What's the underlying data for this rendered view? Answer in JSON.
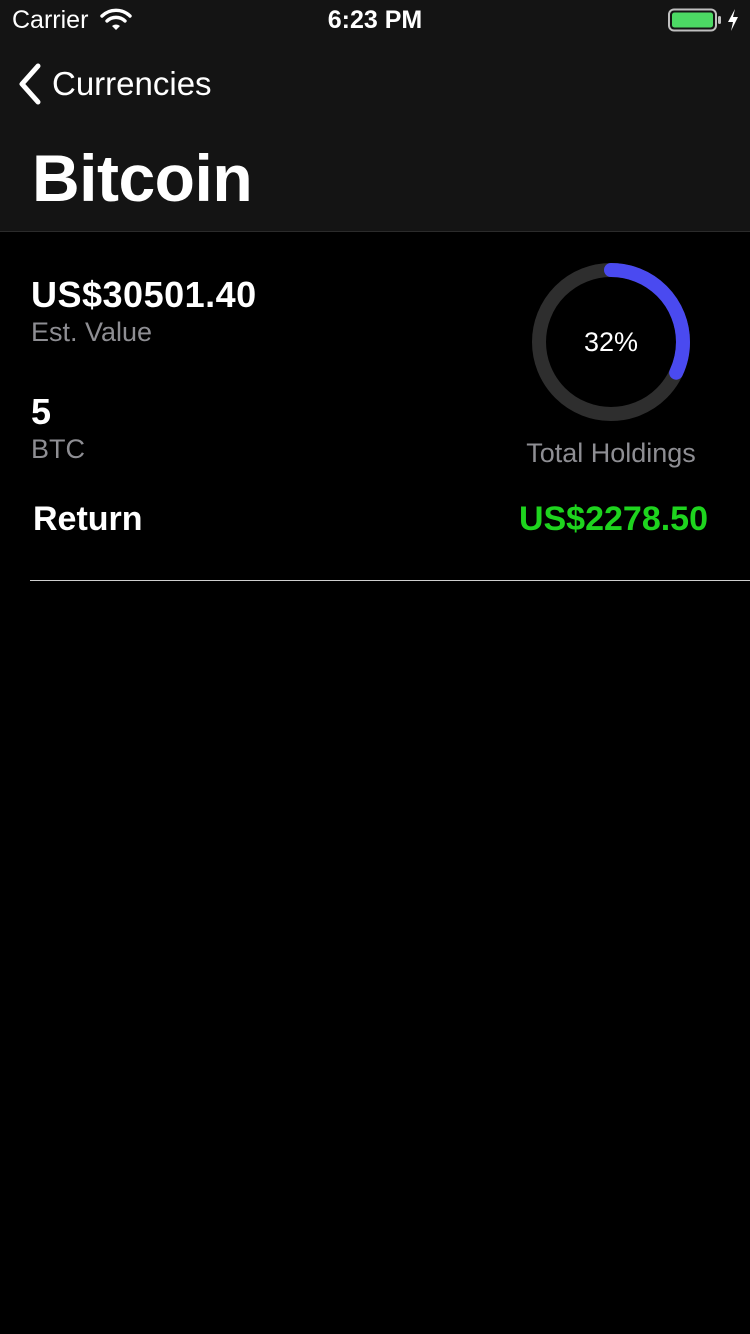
{
  "status_bar": {
    "carrier": "Carrier",
    "time": "6:23 PM",
    "icons": [
      "wifi-icon",
      "battery-icon",
      "charging-icon"
    ]
  },
  "nav": {
    "back_label": "Currencies",
    "back_icon": "chevron-left-icon",
    "title": "Bitcoin"
  },
  "holding": {
    "est_value": "US$30501.40",
    "est_value_label": "Est. Value",
    "amount": "5",
    "symbol": "BTC",
    "share_percent_text": "32%",
    "share_fraction": 0.32,
    "share_label": "Total Holdings",
    "return_label": "Return",
    "return_value": "US$2278.50"
  },
  "colors": {
    "background": "#000000",
    "nav_background": "#141414",
    "ring_track": "#2e2e2e",
    "ring_fill": "#4a4af0",
    "return_positive": "#1ed41e",
    "secondary_text": "#8e8e93",
    "battery_fill": "#4cd964"
  }
}
